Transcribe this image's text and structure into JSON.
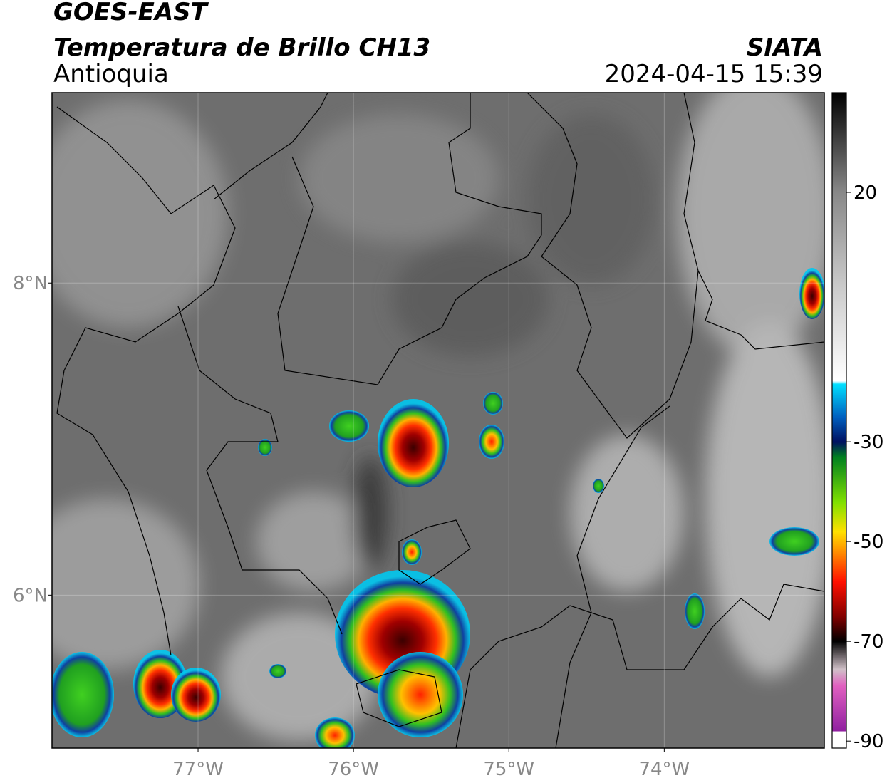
{
  "header": {
    "title": "GOES-EAST",
    "subtitle": "Temperatura de Brillo CH13",
    "region": "Antioquia",
    "source": "SIATA",
    "datetime": "2024-04-15 15:39"
  },
  "map": {
    "lon_range": [
      -77.94,
      -72.97
    ],
    "lat_range": [
      5.02,
      9.22
    ],
    "lon_ticks": [
      {
        "value": -77,
        "label": "77°W"
      },
      {
        "value": -76,
        "label": "76°W"
      },
      {
        "value": -75,
        "label": "75°W"
      },
      {
        "value": -74,
        "label": "74°W"
      }
    ],
    "lat_ticks": [
      {
        "value": 6,
        "label": "6°N"
      },
      {
        "value": 8,
        "label": "8°N"
      }
    ]
  },
  "colorbar": {
    "range": [
      -91.4,
      40
    ],
    "ticks": [
      20,
      -30,
      -50,
      -70,
      -90
    ]
  }
}
